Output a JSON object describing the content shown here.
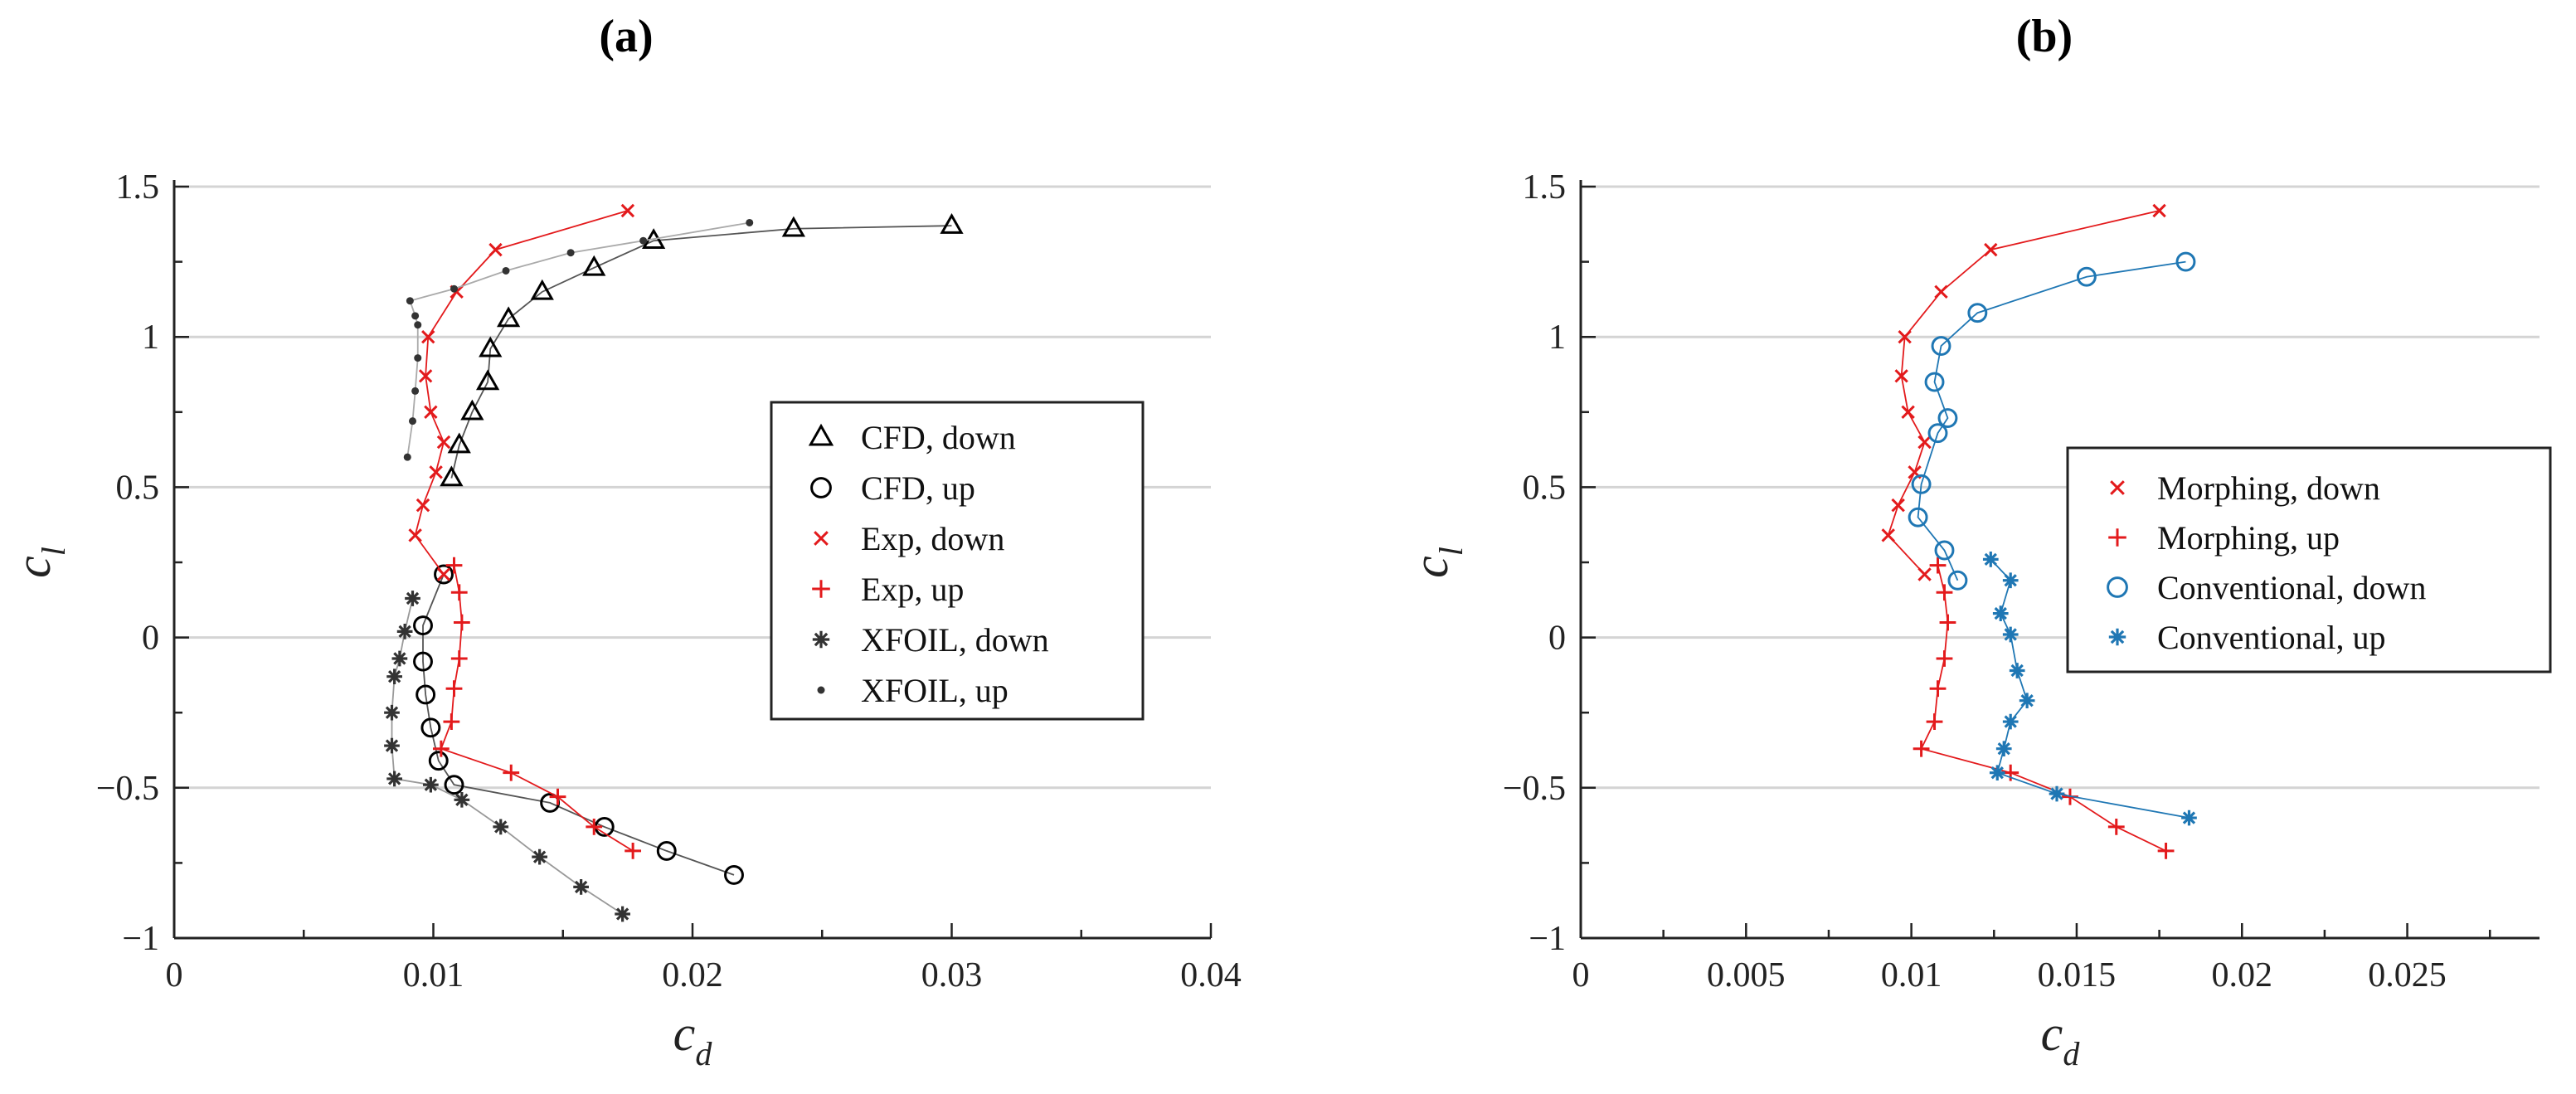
{
  "chart_data": [
    {
      "panel_label": "(a)",
      "type": "line",
      "xlabel": "c",
      "xlabel_sub": "d",
      "ylabel": "c",
      "ylabel_sub": "l",
      "xlim": [
        0,
        0.04
      ],
      "ylim": [
        -1,
        1.5
      ],
      "xticks": [
        0,
        0.01,
        0.02,
        0.03,
        0.04
      ],
      "xtick_labels": [
        "0",
        "0.01",
        "0.02",
        "0.03",
        "0.04"
      ],
      "yticks": [
        -1,
        -0.5,
        0,
        0.5,
        1,
        1.5
      ],
      "ytick_labels": [
        "−1",
        "−0.5",
        "0",
        "0.5",
        "1",
        "1.5"
      ],
      "grid": "horizontal",
      "legend_position": "right",
      "series": [
        {
          "name": "CFD, down",
          "marker": "triangle",
          "color": "#000000",
          "line_color": "#555555",
          "x": [
            0.03,
            0.0239,
            0.0185,
            0.0162,
            0.0142,
            0.0129,
            0.0122,
            0.0121,
            0.0115,
            0.011,
            0.0107
          ],
          "y": [
            1.37,
            1.36,
            1.32,
            1.23,
            1.15,
            1.06,
            0.96,
            0.85,
            0.75,
            0.64,
            0.53
          ]
        },
        {
          "name": "CFD, up",
          "marker": "circle",
          "color": "#000000",
          "line_color": "#555555",
          "x": [
            0.0104,
            0.0096,
            0.0096,
            0.0097,
            0.0099,
            0.0102,
            0.0108,
            0.0145,
            0.0166,
            0.019,
            0.0216
          ],
          "y": [
            0.21,
            0.04,
            -0.08,
            -0.19,
            -0.3,
            -0.41,
            -0.49,
            -0.55,
            -0.63,
            -0.71,
            -0.79
          ]
        },
        {
          "name": "Exp, down",
          "marker": "x",
          "color": "#e31a1c",
          "line_color": "#e31a1c",
          "x": [
            0.0175,
            0.0124,
            0.0109,
            0.0098,
            0.0097,
            0.0099,
            0.0104,
            0.0101,
            0.0096,
            0.0093,
            0.0104
          ],
          "y": [
            1.42,
            1.29,
            1.15,
            1.0,
            0.87,
            0.75,
            0.65,
            0.55,
            0.44,
            0.34,
            0.21
          ]
        },
        {
          "name": "Exp, up",
          "marker": "plus",
          "color": "#e31a1c",
          "line_color": "#e31a1c",
          "x": [
            0.0108,
            0.011,
            0.0111,
            0.011,
            0.0108,
            0.0107,
            0.0103,
            0.013,
            0.0148,
            0.0162,
            0.0177
          ],
          "y": [
            0.24,
            0.15,
            0.05,
            -0.07,
            -0.17,
            -0.28,
            -0.37,
            -0.45,
            -0.53,
            -0.63,
            -0.71
          ]
        },
        {
          "name": "XFOIL, down",
          "marker": "asterisk",
          "color": "#333333",
          "line_color": "#999999",
          "x": [
            0.0092,
            0.0089,
            0.0087,
            0.0085,
            0.0084,
            0.0084,
            0.0085,
            0.0099,
            0.0111,
            0.0126,
            0.0141,
            0.0157,
            0.0173
          ],
          "y": [
            0.13,
            0.02,
            -0.07,
            -0.13,
            -0.25,
            -0.36,
            -0.47,
            -0.49,
            -0.54,
            -0.63,
            -0.73,
            -0.83,
            -0.92
          ]
        },
        {
          "name": "XFOIL, up",
          "marker": "dot",
          "color": "#333333",
          "line_color": "#aaaaaa",
          "x": [
            0.009,
            0.0092,
            0.0093,
            0.0094,
            0.0094,
            0.0093,
            0.0091,
            0.0108,
            0.0128,
            0.0153,
            0.0181,
            0.0222
          ],
          "y": [
            0.6,
            0.72,
            0.82,
            0.93,
            1.04,
            1.07,
            1.12,
            1.16,
            1.22,
            1.28,
            1.32,
            1.38
          ]
        }
      ]
    },
    {
      "panel_label": "(b)",
      "type": "line",
      "xlabel": "c",
      "xlabel_sub": "d",
      "ylabel": "c",
      "ylabel_sub": "l",
      "xlim": [
        0,
        0.029
      ],
      "ylim": [
        -1,
        1.5
      ],
      "xticks": [
        0,
        0.005,
        0.01,
        0.015,
        0.02,
        0.025
      ],
      "xtick_labels": [
        "0",
        "0.005",
        "0.01",
        "0.015",
        "0.02",
        "0.025"
      ],
      "yticks": [
        -1,
        -0.5,
        0,
        0.5,
        1,
        1.5
      ],
      "ytick_labels": [
        "−1",
        "−0.5",
        "0",
        "0.5",
        "1",
        "1.5"
      ],
      "grid": "horizontal",
      "legend_position": "right",
      "series": [
        {
          "name": "Morphing, down",
          "marker": "x",
          "color": "#e31a1c",
          "line_color": "#e31a1c",
          "x": [
            0.0175,
            0.0124,
            0.0109,
            0.0098,
            0.0097,
            0.0099,
            0.0104,
            0.0101,
            0.0096,
            0.0093,
            0.0104
          ],
          "y": [
            1.42,
            1.29,
            1.15,
            1.0,
            0.87,
            0.75,
            0.65,
            0.55,
            0.44,
            0.34,
            0.21
          ]
        },
        {
          "name": "Morphing, up",
          "marker": "plus",
          "color": "#e31a1c",
          "line_color": "#e31a1c",
          "x": [
            0.0108,
            0.011,
            0.0111,
            0.011,
            0.0108,
            0.0107,
            0.0103,
            0.013,
            0.0148,
            0.0162,
            0.0177
          ],
          "y": [
            0.24,
            0.15,
            0.05,
            -0.07,
            -0.17,
            -0.28,
            -0.37,
            -0.45,
            -0.53,
            -0.63,
            -0.71
          ]
        },
        {
          "name": "Conventional, down",
          "marker": "circle",
          "color": "#1f77b4",
          "line_color": "#1f77b4",
          "x": [
            0.0183,
            0.0153,
            0.012,
            0.0109,
            0.0107,
            0.0111,
            0.0108,
            0.0103,
            0.0102,
            0.011,
            0.0114
          ],
          "y": [
            1.25,
            1.2,
            1.08,
            0.97,
            0.85,
            0.73,
            0.68,
            0.51,
            0.4,
            0.29,
            0.19
          ]
        },
        {
          "name": "Conventional, up",
          "marker": "asterisk",
          "color": "#1f77b4",
          "line_color": "#1f77b4",
          "x": [
            0.0124,
            0.013,
            0.0127,
            0.013,
            0.0132,
            0.0135,
            0.013,
            0.0128,
            0.0126,
            0.0144,
            0.0184
          ],
          "y": [
            0.26,
            0.19,
            0.08,
            0.01,
            -0.11,
            -0.21,
            -0.28,
            -0.37,
            -0.45,
            -0.52,
            -0.6
          ]
        }
      ]
    }
  ]
}
